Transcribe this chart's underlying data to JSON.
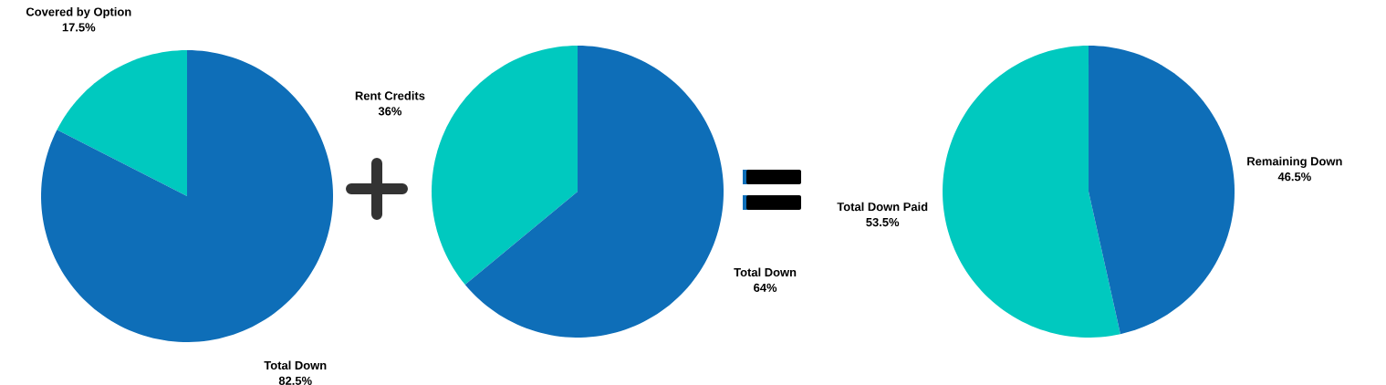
{
  "chart_data": [
    {
      "type": "pie",
      "categories": [
        "Covered by Option",
        "Total Down"
      ],
      "values": [
        17.5,
        82.5
      ],
      "colors": [
        "#00c9bf",
        "#0e6eb8"
      ],
      "value_labels": [
        "17.5%",
        "82.5%"
      ]
    },
    {
      "type": "pie",
      "categories": [
        "Rent Credits",
        "Total Down"
      ],
      "values": [
        36,
        64
      ],
      "colors": [
        "#00c9bf",
        "#0e6eb8"
      ],
      "value_labels": [
        "36%",
        "64%"
      ]
    },
    {
      "type": "pie",
      "categories": [
        "Total Down Paid",
        "Remaining Down"
      ],
      "values": [
        53.5,
        46.5
      ],
      "colors": [
        "#00c9bf",
        "#0e6eb8"
      ],
      "value_labels": [
        "53.5%",
        "46.5%"
      ]
    }
  ]
}
